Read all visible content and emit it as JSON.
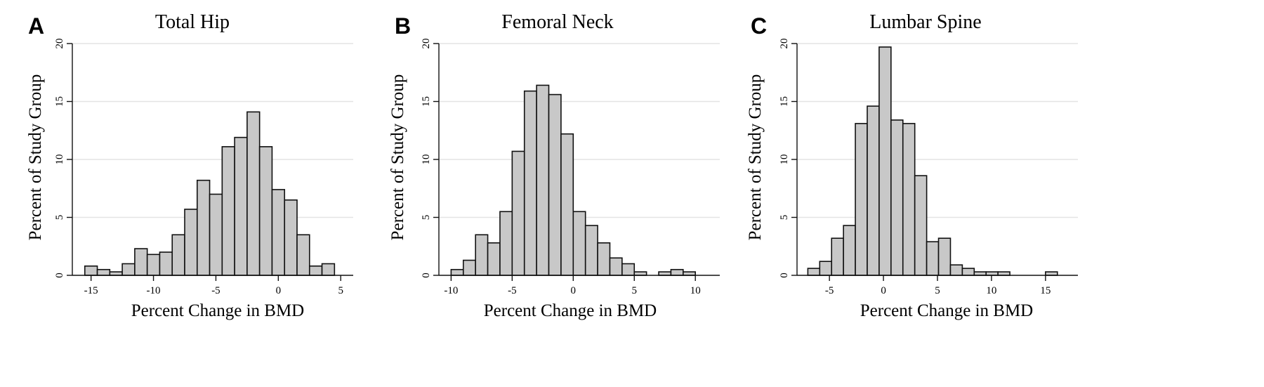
{
  "chart_data": [
    {
      "panel_letter": "A",
      "type": "bar",
      "title": "Total Hip",
      "xlabel": "Percent Change in BMD",
      "ylabel": "Percent of Study Group",
      "xlim": [
        -16.5,
        6
      ],
      "ylim": [
        0,
        20
      ],
      "xticks": [
        -15,
        -10,
        -5,
        0,
        5
      ],
      "yticks": [
        0,
        5,
        10,
        15,
        20
      ],
      "grid": true,
      "bin_start": -15.5,
      "bin_width": 1,
      "values": [
        0.8,
        0.5,
        0.3,
        1.0,
        2.3,
        1.8,
        2.0,
        3.5,
        5.7,
        8.2,
        7.0,
        11.1,
        11.9,
        14.1,
        11.1,
        7.4,
        6.5,
        3.5,
        0.8,
        1.0
      ]
    },
    {
      "panel_letter": "B",
      "type": "bar",
      "title": "Femoral Neck",
      "xlabel": "Percent Change in BMD",
      "ylabel": "Percent of Study Group",
      "xlim": [
        -11,
        12
      ],
      "ylim": [
        0,
        20
      ],
      "xticks": [
        -10,
        -5,
        0,
        5,
        10
      ],
      "yticks": [
        0,
        5,
        10,
        15,
        20
      ],
      "grid": true,
      "bin_start": -10,
      "bin_width": 1,
      "values": [
        0.5,
        1.3,
        3.5,
        2.8,
        5.5,
        10.7,
        15.9,
        16.4,
        15.6,
        12.2,
        5.5,
        4.3,
        2.8,
        1.5,
        1.0,
        0.3,
        0.0,
        0.3,
        0.5,
        0.3
      ]
    },
    {
      "panel_letter": "C",
      "type": "bar",
      "title": "Lumbar Spine",
      "xlabel": "Percent Change in BMD",
      "ylabel": "Percent of Study Group",
      "xlim": [
        -8,
        18
      ],
      "ylim": [
        0,
        20
      ],
      "xticks": [
        -5,
        0,
        5,
        10,
        15
      ],
      "yticks": [
        0,
        5,
        10,
        15,
        20
      ],
      "grid": true,
      "bin_start": -7,
      "bin_width": 1.1,
      "values": [
        0.6,
        1.2,
        3.2,
        4.3,
        13.1,
        14.6,
        19.7,
        13.4,
        13.1,
        8.6,
        2.9,
        3.2,
        0.9,
        0.6,
        0.3,
        0.3,
        0.3,
        0.0,
        0.0,
        0.0,
        0.3
      ]
    }
  ]
}
